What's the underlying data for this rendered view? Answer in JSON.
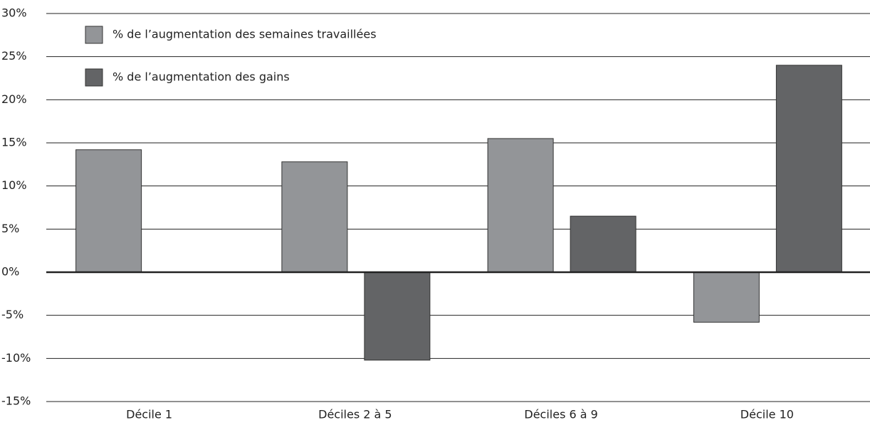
{
  "chart_data": {
    "type": "bar",
    "categories": [
      "Décile 1",
      "Déciles 2 à 5",
      "Déciles 6 à 9",
      "Décile 10"
    ],
    "series": [
      {
        "name": "% de l’augmentation des semaines travaillées",
        "color": "#939598",
        "values": [
          14.2,
          12.8,
          15.5,
          -5.8
        ]
      },
      {
        "name": "% de l’augmentation des gains",
        "color": "#636466",
        "values": [
          0,
          -10.2,
          6.5,
          24
        ]
      }
    ],
    "ylim": [
      -15,
      30
    ],
    "yticks": [
      {
        "value": -15,
        "label": "-15%"
      },
      {
        "value": -10,
        "label": "-10%"
      },
      {
        "value": -5,
        "label": "-5%"
      },
      {
        "value": 0,
        "label": "0%"
      },
      {
        "value": 5,
        "label": "5%"
      },
      {
        "value": 10,
        "label": "10%"
      },
      {
        "value": 15,
        "label": "15%"
      },
      {
        "value": 20,
        "label": "20%"
      },
      {
        "value": 25,
        "label": "25%"
      },
      {
        "value": 30,
        "label": "30%"
      }
    ],
    "grid": true
  }
}
